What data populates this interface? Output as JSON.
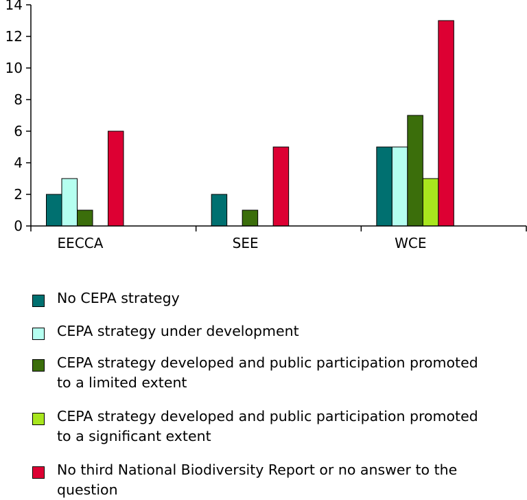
{
  "chart_data": {
    "type": "bar",
    "categories": [
      "EECCA",
      "SEE",
      "WCE"
    ],
    "ylim": [
      0,
      14
    ],
    "yticks": [
      0,
      2,
      4,
      6,
      8,
      10,
      12,
      14
    ],
    "grid": false,
    "legend_position": "bottom",
    "series": [
      {
        "name": "No CEPA strategy",
        "values": [
          2,
          2,
          5
        ],
        "color": "#007070"
      },
      {
        "name": "CEPA strategy under development",
        "values": [
          3,
          0,
          5
        ],
        "color": "#b5fff0"
      },
      {
        "name": "CEPA strategy developed and public participation promoted to a limited extent",
        "values": [
          1,
          1,
          7
        ],
        "color": "#3b6e0b"
      },
      {
        "name": "CEPA strategy developed and public participation promoted to a significant extent",
        "values": [
          0,
          0,
          3
        ],
        "color": "#a8e61e"
      },
      {
        "name": "No third National Biodiversity Report or no answer to the question",
        "values": [
          6,
          5,
          13
        ],
        "color": "#dd0033"
      }
    ]
  }
}
